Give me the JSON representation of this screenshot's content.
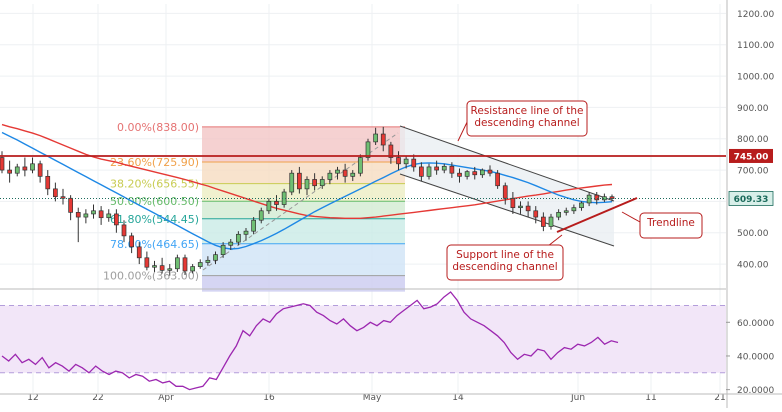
{
  "chart_data": [
    {
      "type": "candlestick",
      "title": "",
      "y_axis": {
        "ticks": [
          {
            "value": 1200,
            "label": "1200.00"
          },
          {
            "value": 1100,
            "label": "1100.00"
          },
          {
            "value": 1000,
            "label": "1000.00"
          },
          {
            "value": 900,
            "label": "900.00"
          },
          {
            "value": 800,
            "label": "800.00"
          },
          {
            "value": 700,
            "label": "700.00"
          },
          {
            "value": 600,
            "label": "600.00"
          },
          {
            "value": 500,
            "label": "500.00"
          },
          {
            "value": 400,
            "label": "400.00"
          }
        ],
        "range": [
          330,
          1230
        ],
        "current_price": {
          "value": 609.33,
          "label": "609.33",
          "color": "#1c6b5c"
        },
        "marked_price": {
          "value": 745.0,
          "label": "745.00",
          "color": "#b71c1c"
        }
      },
      "x_axis": {
        "ticks": [
          "12",
          "22",
          "Apr",
          "16",
          "May",
          "14",
          "Jun",
          "11",
          "21"
        ]
      },
      "fibonacci": {
        "levels": [
          {
            "label": "0.00%(838.00)",
            "value": 838.0,
            "color": "#e57373"
          },
          {
            "label": "23.60%(725.90)",
            "value": 725.9,
            "color": "#f0a14a"
          },
          {
            "label": "38.20%(656.55)",
            "value": 656.55,
            "color": "#c8cc52"
          },
          {
            "label": "50.00%(600.50)",
            "value": 600.5,
            "color": "#66bb6a"
          },
          {
            "label": "61.80%(544.45)",
            "value": 544.45,
            "color": "#26a69a"
          },
          {
            "label": "78.60%(464.65)",
            "value": 464.65,
            "color": "#42a5f5"
          },
          {
            "label": "100.00%(363.00)",
            "value": 363.0,
            "color": "#9e9e9e"
          }
        ]
      },
      "horizontal_line": {
        "value": 745.0,
        "color": "#b71c1c"
      },
      "annotations": [
        {
          "id": "resistance",
          "text_lines": [
            "Resistance line of the",
            "descending channel"
          ]
        },
        {
          "id": "support",
          "text_lines": [
            "Support line of the",
            "descending channel"
          ]
        },
        {
          "id": "trendline",
          "text_lines": [
            "Trendline"
          ]
        }
      ],
      "candles": [
        {
          "o": 740,
          "h": 760,
          "c": 700,
          "l": 690
        },
        {
          "o": 700,
          "h": 730,
          "c": 690,
          "l": 660
        },
        {
          "o": 690,
          "h": 720,
          "c": 710,
          "l": 680
        },
        {
          "o": 710,
          "h": 740,
          "c": 700,
          "l": 680
        },
        {
          "o": 700,
          "h": 740,
          "c": 720,
          "l": 690
        },
        {
          "o": 720,
          "h": 730,
          "c": 680,
          "l": 660
        },
        {
          "o": 680,
          "h": 700,
          "c": 640,
          "l": 620
        },
        {
          "o": 640,
          "h": 660,
          "c": 615,
          "l": 600
        },
        {
          "o": 615,
          "h": 640,
          "c": 610,
          "l": 590
        },
        {
          "o": 610,
          "h": 620,
          "c": 565,
          "l": 540
        },
        {
          "o": 565,
          "h": 580,
          "c": 550,
          "l": 470
        },
        {
          "o": 550,
          "h": 575,
          "c": 560,
          "l": 530
        },
        {
          "o": 560,
          "h": 590,
          "c": 570,
          "l": 545
        },
        {
          "o": 570,
          "h": 585,
          "c": 548,
          "l": 525
        },
        {
          "o": 548,
          "h": 575,
          "c": 560,
          "l": 535
        },
        {
          "o": 560,
          "h": 575,
          "c": 525,
          "l": 500
        },
        {
          "o": 525,
          "h": 540,
          "c": 490,
          "l": 470
        },
        {
          "o": 490,
          "h": 500,
          "c": 455,
          "l": 435
        },
        {
          "o": 455,
          "h": 470,
          "c": 420,
          "l": 400
        },
        {
          "o": 420,
          "h": 440,
          "c": 390,
          "l": 380
        },
        {
          "o": 390,
          "h": 410,
          "c": 395,
          "l": 375
        },
        {
          "o": 395,
          "h": 420,
          "c": 380,
          "l": 370
        },
        {
          "o": 380,
          "h": 400,
          "c": 385,
          "l": 363
        },
        {
          "o": 385,
          "h": 430,
          "c": 420,
          "l": 375
        },
        {
          "o": 420,
          "h": 430,
          "c": 378,
          "l": 365
        },
        {
          "o": 378,
          "h": 400,
          "c": 392,
          "l": 370
        },
        {
          "o": 392,
          "h": 415,
          "c": 405,
          "l": 385
        },
        {
          "o": 405,
          "h": 425,
          "c": 412,
          "l": 395
        },
        {
          "o": 412,
          "h": 440,
          "c": 430,
          "l": 400
        },
        {
          "o": 430,
          "h": 470,
          "c": 460,
          "l": 420
        },
        {
          "o": 460,
          "h": 480,
          "c": 470,
          "l": 445
        },
        {
          "o": 470,
          "h": 505,
          "c": 495,
          "l": 460
        },
        {
          "o": 495,
          "h": 515,
          "c": 505,
          "l": 475
        },
        {
          "o": 505,
          "h": 550,
          "c": 540,
          "l": 495
        },
        {
          "o": 540,
          "h": 580,
          "c": 570,
          "l": 530
        },
        {
          "o": 570,
          "h": 610,
          "c": 600,
          "l": 560
        },
        {
          "o": 600,
          "h": 620,
          "c": 590,
          "l": 570
        },
        {
          "o": 590,
          "h": 640,
          "c": 630,
          "l": 580
        },
        {
          "o": 630,
          "h": 700,
          "c": 690,
          "l": 620
        },
        {
          "o": 690,
          "h": 710,
          "c": 640,
          "l": 625
        },
        {
          "o": 640,
          "h": 680,
          "c": 670,
          "l": 620
        },
        {
          "o": 670,
          "h": 690,
          "c": 650,
          "l": 635
        },
        {
          "o": 650,
          "h": 680,
          "c": 670,
          "l": 640
        },
        {
          "o": 670,
          "h": 700,
          "c": 690,
          "l": 655
        },
        {
          "o": 690,
          "h": 710,
          "c": 700,
          "l": 670
        },
        {
          "o": 700,
          "h": 720,
          "c": 680,
          "l": 660
        },
        {
          "o": 680,
          "h": 700,
          "c": 690,
          "l": 665
        },
        {
          "o": 690,
          "h": 750,
          "c": 740,
          "l": 680
        },
        {
          "o": 740,
          "h": 800,
          "c": 790,
          "l": 730
        },
        {
          "o": 790,
          "h": 835,
          "c": 815,
          "l": 780
        },
        {
          "o": 815,
          "h": 838,
          "c": 780,
          "l": 760
        },
        {
          "o": 780,
          "h": 790,
          "c": 740,
          "l": 720
        },
        {
          "o": 740,
          "h": 760,
          "c": 720,
          "l": 700
        },
        {
          "o": 720,
          "h": 745,
          "c": 735,
          "l": 705
        },
        {
          "o": 735,
          "h": 750,
          "c": 710,
          "l": 695
        },
        {
          "o": 710,
          "h": 725,
          "c": 680,
          "l": 665
        },
        {
          "o": 680,
          "h": 720,
          "c": 710,
          "l": 670
        },
        {
          "o": 710,
          "h": 730,
          "c": 700,
          "l": 685
        },
        {
          "o": 700,
          "h": 720,
          "c": 712,
          "l": 690
        },
        {
          "o": 712,
          "h": 725,
          "c": 690,
          "l": 675
        },
        {
          "o": 690,
          "h": 705,
          "c": 680,
          "l": 660
        },
        {
          "o": 680,
          "h": 700,
          "c": 695,
          "l": 670
        },
        {
          "o": 695,
          "h": 710,
          "c": 685,
          "l": 670
        },
        {
          "o": 685,
          "h": 705,
          "c": 700,
          "l": 675
        },
        {
          "o": 700,
          "h": 715,
          "c": 690,
          "l": 680
        },
        {
          "o": 690,
          "h": 700,
          "c": 650,
          "l": 640
        },
        {
          "o": 650,
          "h": 660,
          "c": 610,
          "l": 590
        },
        {
          "o": 610,
          "h": 630,
          "c": 580,
          "l": 560
        },
        {
          "o": 580,
          "h": 600,
          "c": 585,
          "l": 560
        },
        {
          "o": 585,
          "h": 600,
          "c": 570,
          "l": 550
        },
        {
          "o": 570,
          "h": 585,
          "c": 550,
          "l": 530
        },
        {
          "o": 550,
          "h": 565,
          "c": 520,
          "l": 505
        },
        {
          "o": 520,
          "h": 560,
          "c": 550,
          "l": 510
        },
        {
          "o": 550,
          "h": 575,
          "c": 565,
          "l": 540
        },
        {
          "o": 565,
          "h": 580,
          "c": 570,
          "l": 555
        },
        {
          "o": 570,
          "h": 590,
          "c": 580,
          "l": 560
        },
        {
          "o": 580,
          "h": 600,
          "c": 595,
          "l": 570
        },
        {
          "o": 595,
          "h": 630,
          "c": 620,
          "l": 585
        },
        {
          "o": 620,
          "h": 630,
          "c": 605,
          "l": 590
        },
        {
          "o": 605,
          "h": 625,
          "c": 615,
          "l": 598
        },
        {
          "o": 615,
          "h": 622,
          "c": 609,
          "l": 600
        }
      ],
      "series": [
        {
          "values": [
            845,
            838,
            832,
            825,
            818,
            810,
            800,
            790,
            780,
            770,
            760,
            750,
            742,
            735,
            730,
            725,
            718,
            712,
            706,
            700,
            694,
            688,
            682,
            676,
            670,
            663,
            656,
            649,
            641,
            633,
            625,
            617,
            609,
            601,
            593,
            585,
            578,
            572,
            566,
            560,
            555,
            552,
            550,
            548,
            547,
            546,
            546,
            546,
            548,
            550,
            553,
            556,
            559,
            562,
            565,
            568,
            571,
            574,
            577,
            580,
            583,
            586,
            589,
            593,
            597,
            601,
            605,
            609,
            613,
            617,
            620,
            624,
            628,
            632,
            636,
            640,
            643,
            646,
            649,
            652,
            654
          ],
          "color": "#e53935"
        },
        {
          "values": [
            820,
            808,
            796,
            783,
            770,
            757,
            744,
            731,
            718,
            705,
            692,
            679,
            666,
            653,
            640,
            627,
            614,
            601,
            588,
            575,
            562,
            549,
            536,
            523,
            510,
            497,
            484,
            471,
            460,
            452,
            448,
            450,
            456,
            465,
            475,
            486,
            498,
            511,
            525,
            539,
            553,
            567,
            580,
            592,
            604,
            616,
            628,
            640,
            652,
            664,
            676,
            688,
            700,
            710,
            718,
            722,
            723,
            722,
            720,
            716,
            712,
            708,
            704,
            700,
            696,
            690,
            683,
            676,
            668,
            660,
            650,
            640,
            630,
            620,
            612,
            605,
            600,
            597,
            596,
            597,
            599
          ],
          "color": "#1e88e5"
        }
      ]
    },
    {
      "type": "line",
      "title": "",
      "y_axis": {
        "ticks": [
          {
            "value": 60,
            "label": "60.0000"
          },
          {
            "value": 40,
            "label": "40.0000"
          },
          {
            "value": 20,
            "label": "20.0000"
          }
        ],
        "range": [
          18,
          78
        ],
        "band": [
          30,
          70
        ]
      },
      "series": [
        {
          "color": "#9c27b0",
          "values": [
            40,
            37,
            41,
            36,
            38,
            35,
            39,
            33,
            36,
            34,
            31,
            35,
            33,
            30,
            34,
            31,
            29,
            31,
            30,
            27,
            29,
            28,
            25,
            26,
            24,
            25,
            22,
            22,
            20,
            21,
            22,
            27,
            26,
            33,
            40,
            46,
            55,
            52,
            58,
            62,
            60,
            65,
            68,
            69,
            70,
            71,
            70,
            66,
            64,
            61,
            59,
            62,
            58,
            55,
            57,
            60,
            58,
            61,
            60,
            64,
            67,
            70,
            73,
            68,
            69,
            71,
            75,
            78,
            73,
            66,
            62,
            60,
            58,
            55,
            52,
            48,
            42,
            38,
            41,
            40,
            44,
            43,
            38,
            42,
            45,
            44,
            47,
            46,
            48,
            51,
            47,
            49,
            48
          ]
        }
      ]
    }
  ]
}
